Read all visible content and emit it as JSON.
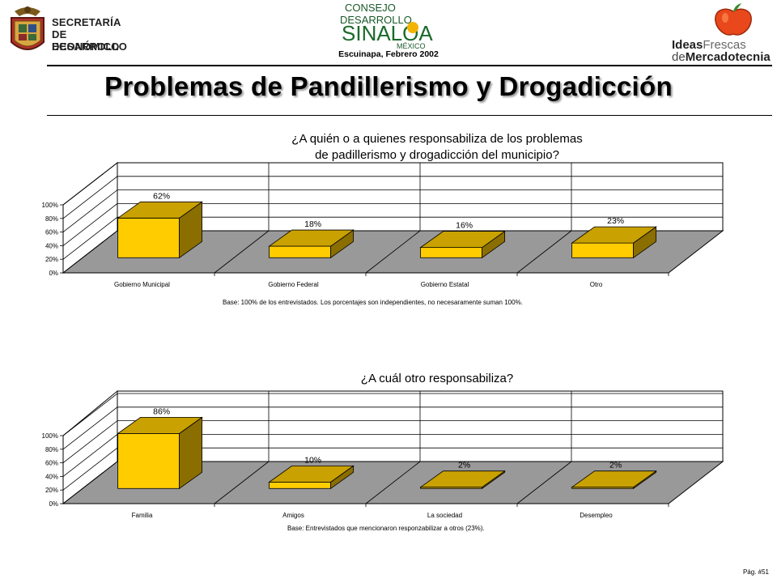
{
  "header": {
    "org_lines": [
      "SECRETARÍA",
      "DE DESARROLLO",
      "ECONÓMICO"
    ],
    "consejo": {
      "line1": "CONSEJO",
      "line2": "DESARROLLO",
      "main": "SINALOA",
      "sub": "MÉXICO"
    },
    "place_date": "Escuinapa, Febrero 2002",
    "brand": {
      "ideas": "Ideas",
      "frescas": "Frescas",
      "de": "de",
      "mercadotecnia": "Mercadotecnia"
    }
  },
  "page_title": "Problemas de Pandillerismo y Drogadicción",
  "colors": {
    "bar_front": "#FFCC00",
    "bar_top": "#C9A100",
    "bar_side": "#8A6E00",
    "floor": "#999999"
  },
  "chart_data": [
    {
      "type": "bar",
      "title_lines": [
        "¿A quién o a quienes responsabiliza de los problemas",
        "de padillerismo y drogadicción del municipio?"
      ],
      "categories": [
        "Gobierno Municipal",
        "Gobierno Federal",
        "Gobierno Estatal",
        "Otro"
      ],
      "values": [
        62,
        18,
        16,
        23
      ],
      "data_labels": [
        "62%",
        "18%",
        "16%",
        "23%"
      ],
      "y_ticks": [
        "0%",
        "20%",
        "40%",
        "60%",
        "80%",
        "100%"
      ],
      "ylim": [
        0,
        100
      ],
      "grid": true,
      "note": "Base:   100% de los entrevistados. Los porcentajes son independientes, no necesaramente suman 100%."
    },
    {
      "type": "bar",
      "title_lines": [
        "¿A cuál otro responsabiliza?"
      ],
      "categories": [
        "Familia",
        "Amigos",
        "La sociedad",
        "Desempleo"
      ],
      "values": [
        86,
        10,
        2,
        2
      ],
      "data_labels": [
        "86%",
        "10%",
        "2%",
        "2%"
      ],
      "y_ticks": [
        "0%",
        "20%",
        "40%",
        "60%",
        "80%",
        "100%"
      ],
      "ylim": [
        0,
        100
      ],
      "grid": true,
      "note": "Base:   Entrevistados que mencionaron responzabilizar a otros (23%)."
    }
  ],
  "footer": {
    "page_num": "Pág. #51"
  }
}
